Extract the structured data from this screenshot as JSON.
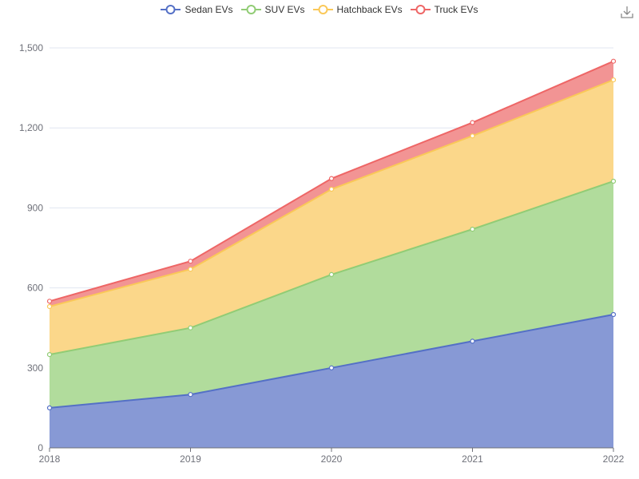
{
  "chart_data": {
    "type": "area",
    "stacked": true,
    "categories": [
      "2018",
      "2019",
      "2020",
      "2021",
      "2022"
    ],
    "series": [
      {
        "name": "Sedan EVs",
        "color": "#5470c6",
        "fill": "#8799d5",
        "values": [
          150,
          200,
          300,
          400,
          500
        ]
      },
      {
        "name": "SUV EVs",
        "color": "#91cc75",
        "fill": "#b1dc9c",
        "values": [
          200,
          250,
          350,
          420,
          500
        ]
      },
      {
        "name": "Hatchback EVs",
        "color": "#fac858",
        "fill": "#fbd78a",
        "values": [
          180,
          220,
          320,
          350,
          380
        ]
      },
      {
        "name": "Truck EVs",
        "color": "#ee6666",
        "fill": "#f29494",
        "values": [
          20,
          30,
          40,
          50,
          70
        ]
      }
    ],
    "ylim": [
      0,
      1500
    ],
    "yticks": [
      "0",
      "300",
      "600",
      "900",
      "1,200",
      "1,500"
    ],
    "grid": true,
    "legend_position": "top-center"
  },
  "toolbar": {
    "download_icon": "download-icon"
  }
}
